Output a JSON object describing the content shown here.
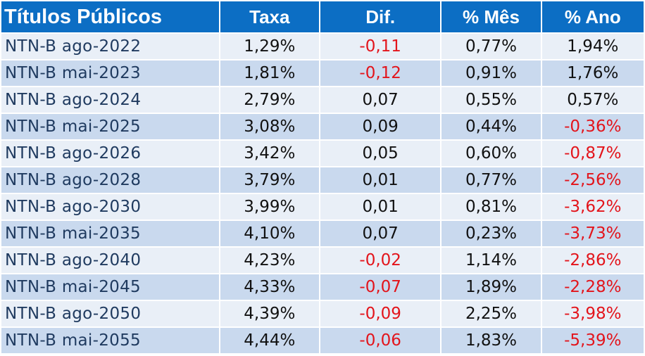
{
  "table": {
    "headers": [
      "Títulos Públicos",
      "Taxa",
      "Dif.",
      "% Mês",
      "% Ano"
    ],
    "rows": [
      {
        "name": "NTN-B ago-2022",
        "taxa": "1,29%",
        "dif": "-0,11",
        "mes": "0,77%",
        "ano": "1,94%"
      },
      {
        "name": "NTN-B mai-2023",
        "taxa": "1,81%",
        "dif": "-0,12",
        "mes": "0,91%",
        "ano": "1,76%"
      },
      {
        "name": "NTN-B ago-2024",
        "taxa": "2,79%",
        "dif": "0,07",
        "mes": "0,55%",
        "ano": "0,57%"
      },
      {
        "name": "NTN-B mai-2025",
        "taxa": "3,08%",
        "dif": "0,09",
        "mes": "0,44%",
        "ano": "-0,36%"
      },
      {
        "name": "NTN-B ago-2026",
        "taxa": "3,42%",
        "dif": "0,05",
        "mes": "0,60%",
        "ano": "-0,87%"
      },
      {
        "name": "NTN-B ago-2028",
        "taxa": "3,79%",
        "dif": "0,01",
        "mes": "0,77%",
        "ano": "-2,56%"
      },
      {
        "name": "NTN-B ago-2030",
        "taxa": "3,99%",
        "dif": "0,01",
        "mes": "0,81%",
        "ano": "-3,62%"
      },
      {
        "name": "NTN-B mai-2035",
        "taxa": "4,10%",
        "dif": "0,07",
        "mes": "0,23%",
        "ano": "-3,73%"
      },
      {
        "name": "NTN-B ago-2040",
        "taxa": "4,23%",
        "dif": "-0,02",
        "mes": "1,14%",
        "ano": "-2,86%"
      },
      {
        "name": "NTN-B mai-2045",
        "taxa": "4,33%",
        "dif": "-0,07",
        "mes": "1,89%",
        "ano": "-2,28%"
      },
      {
        "name": "NTN-B ago-2050",
        "taxa": "4,39%",
        "dif": "-0,09",
        "mes": "2,25%",
        "ano": "-3,98%"
      },
      {
        "name": "NTN-B mai-2055",
        "taxa": "4,44%",
        "dif": "-0,06",
        "mes": "1,83%",
        "ano": "-5,39%"
      }
    ]
  },
  "colors": {
    "header_bg": "#0c6ec4",
    "header_text": "#ffffff",
    "row_light": "#e9eff7",
    "row_dark": "#c9d9ee",
    "negative": "#e3141b",
    "name_text": "#1f3a5f"
  }
}
